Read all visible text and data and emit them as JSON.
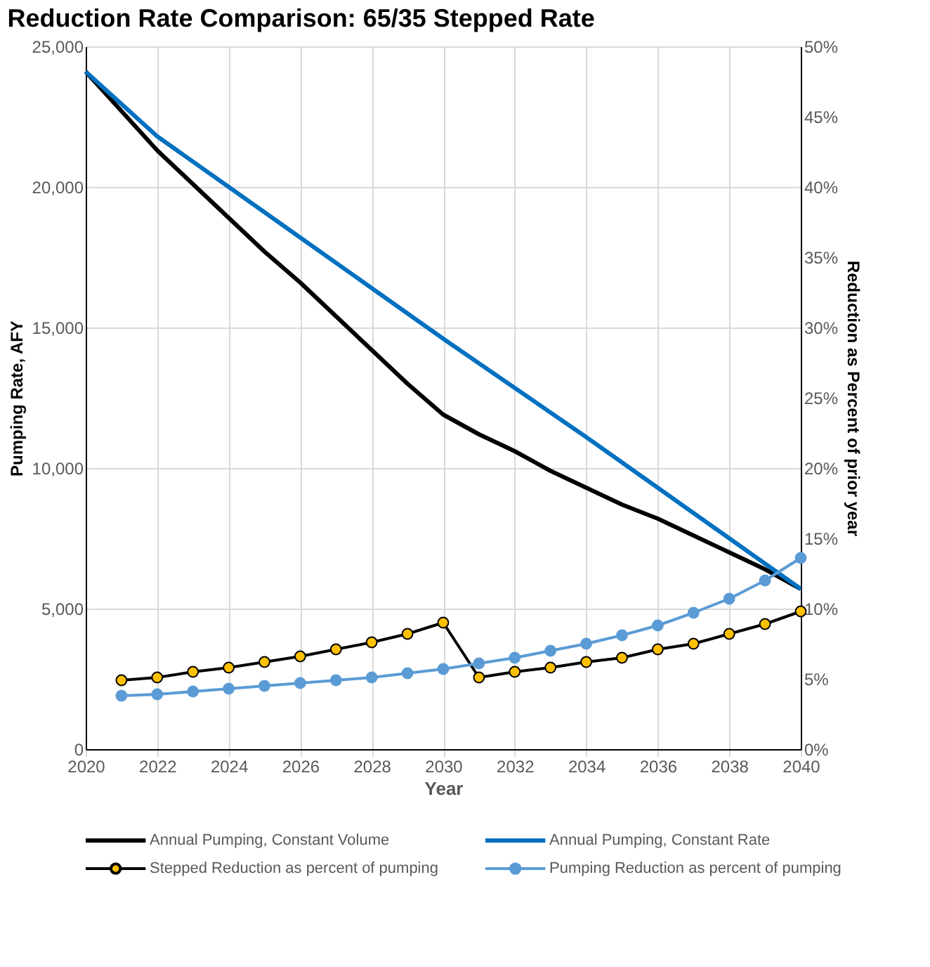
{
  "chart_data": {
    "type": "line",
    "title": "Reduction Rate Comparison:  65/35 Stepped Rate",
    "xlabel": "Year",
    "ylabel": "Pumping Rate, AFY",
    "y2label": "Reduction as Percent of prior year",
    "xlim": [
      2020,
      2040
    ],
    "xticks": [
      2020,
      2022,
      2024,
      2026,
      2028,
      2030,
      2032,
      2034,
      2036,
      2038,
      2040
    ],
    "ylim": [
      0,
      25000
    ],
    "yticks": [
      {
        "value": 0,
        "label": "0"
      },
      {
        "value": 5000,
        "label": "5,000"
      },
      {
        "value": 10000,
        "label": "10,000"
      },
      {
        "value": 15000,
        "label": "15,000"
      },
      {
        "value": 20000,
        "label": "20,000"
      },
      {
        "value": 25000,
        "label": "25,000"
      }
    ],
    "y2lim": [
      0,
      50
    ],
    "y2ticks": [
      {
        "value": 0,
        "label": "0%"
      },
      {
        "value": 5,
        "label": "5%"
      },
      {
        "value": 10,
        "label": "10%"
      },
      {
        "value": 15,
        "label": "15%"
      },
      {
        "value": 20,
        "label": "20%"
      },
      {
        "value": 25,
        "label": "25%"
      },
      {
        "value": 30,
        "label": "30%"
      },
      {
        "value": 35,
        "label": "35%"
      },
      {
        "value": 40,
        "label": "40%"
      },
      {
        "value": 45,
        "label": "45%"
      },
      {
        "value": 50,
        "label": "50%"
      }
    ],
    "grid": true,
    "legend": "bottom",
    "series": [
      {
        "name": "Annual Pumping, Constant Volume",
        "color": "#000000",
        "marker": "none",
        "x": [
          2020,
          2021,
          2022,
          2023,
          2024,
          2025,
          2026,
          2027,
          2028,
          2029,
          2030,
          2031,
          2032,
          2033,
          2034,
          2035,
          2036,
          2037,
          2038,
          2039,
          2040
        ],
        "values": [
          24100,
          22700,
          21300,
          20100,
          18900,
          17700,
          16600,
          15400,
          14200,
          13000,
          11900,
          11200,
          10600,
          9900,
          9300,
          8700,
          8200,
          7600,
          7000,
          6400,
          5700
        ]
      },
      {
        "name": "Annual Pumping, Constant Rate",
        "color": "#0070c0",
        "marker": "none",
        "x": [
          2020,
          2022,
          2024,
          2026,
          2028,
          2030,
          2032,
          2034,
          2036,
          2038,
          2040
        ],
        "values": [
          24100,
          21800,
          20000,
          18200,
          16400,
          14600,
          12850,
          11100,
          9300,
          7500,
          5700
        ]
      },
      {
        "name": "Stepped Reduction as percent of pumping",
        "color": "#ffc000",
        "marker": "circle",
        "axis": "y2",
        "x": [
          2021,
          2022,
          2023,
          2024,
          2025,
          2026,
          2027,
          2028,
          2029,
          2030,
          2031,
          2032,
          2033,
          2034,
          2035,
          2036,
          2037,
          2038,
          2039,
          2040
        ],
        "values": [
          4.9,
          5.1,
          5.5,
          5.8,
          6.2,
          6.6,
          7.1,
          7.6,
          8.2,
          9.0,
          5.1,
          5.5,
          5.8,
          6.2,
          6.5,
          7.1,
          7.5,
          8.2,
          8.9,
          9.8
        ]
      },
      {
        "name": "Pumping Reduction as percent of pumping",
        "color": "#5b9bd5",
        "marker": "circle",
        "axis": "y2",
        "x": [
          2021,
          2022,
          2023,
          2024,
          2025,
          2026,
          2027,
          2028,
          2029,
          2030,
          2031,
          2032,
          2033,
          2034,
          2035,
          2036,
          2037,
          2038,
          2039,
          2040
        ],
        "values": [
          3.8,
          3.9,
          4.1,
          4.3,
          4.5,
          4.7,
          4.9,
          5.1,
          5.4,
          5.7,
          6.1,
          6.5,
          7.0,
          7.5,
          8.1,
          8.8,
          9.7,
          10.7,
          12.0,
          13.6
        ]
      }
    ]
  }
}
